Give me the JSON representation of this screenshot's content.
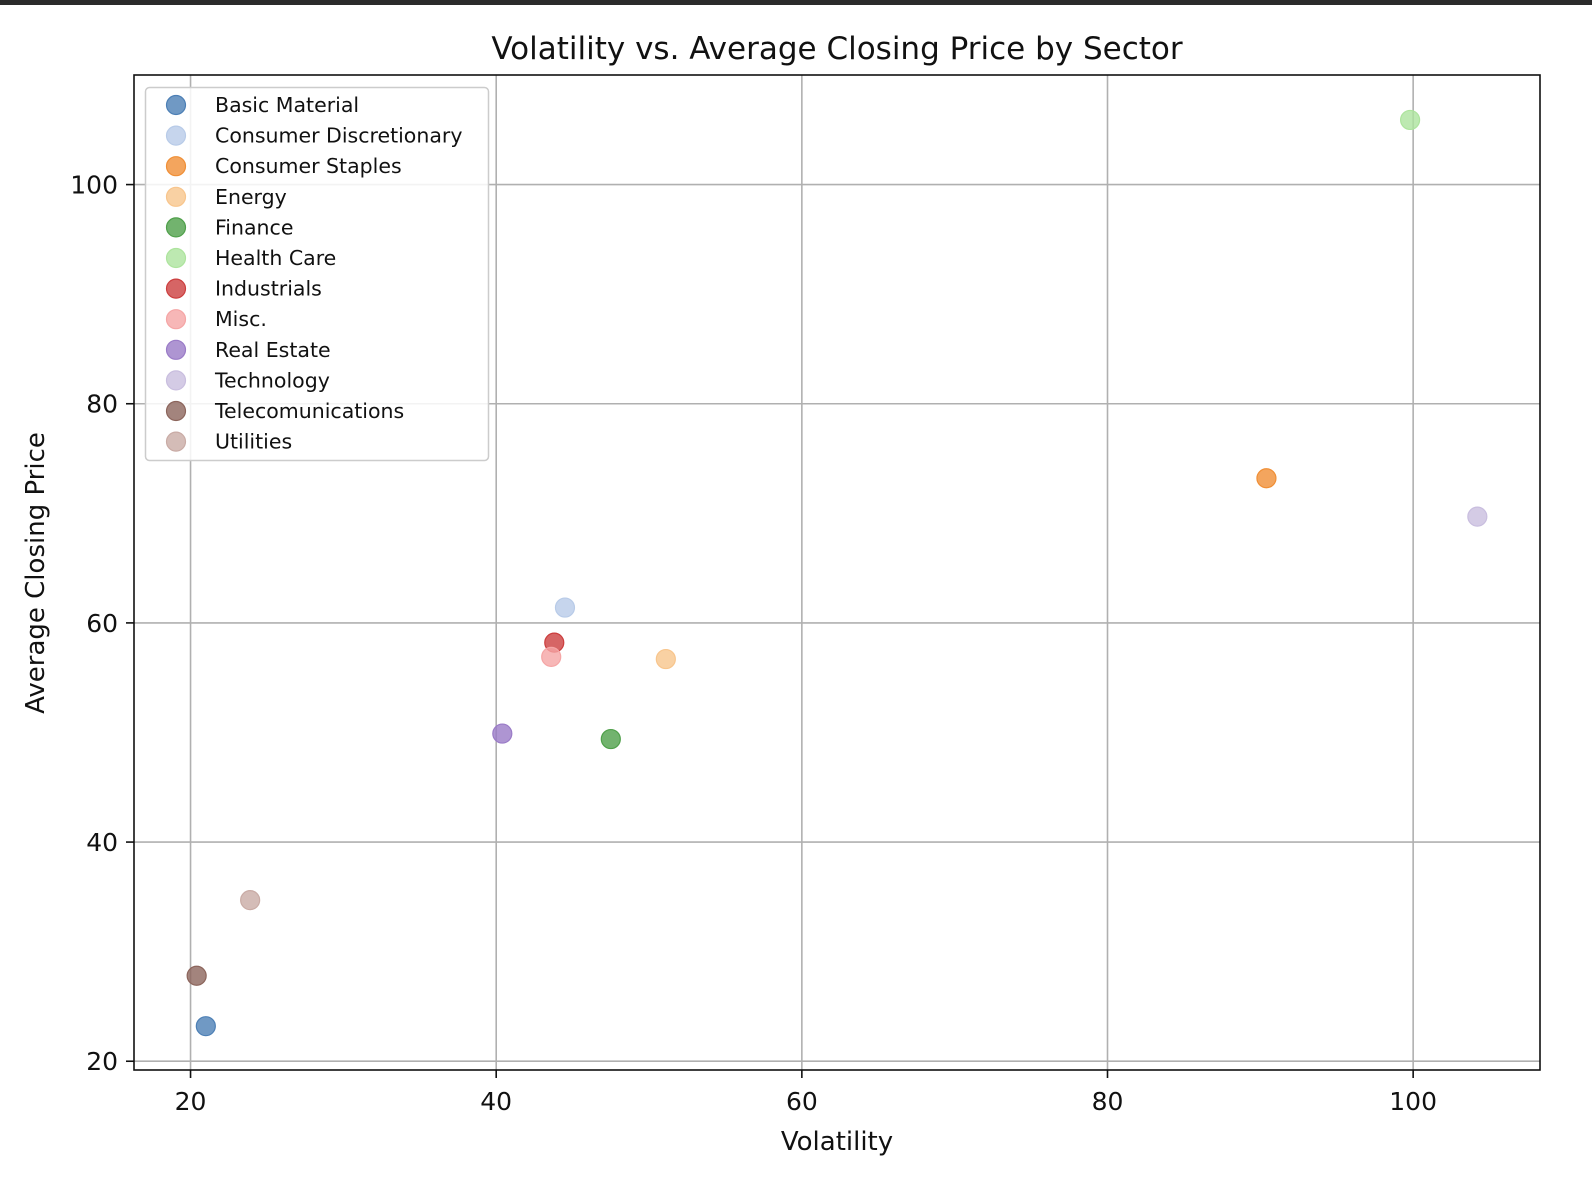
{
  "chart_data": {
    "type": "scatter",
    "title": "Volatility vs. Average Closing Price by Sector",
    "xlabel": "Volatility",
    "ylabel": "Average Closing Price",
    "xlim": [
      16.3,
      108.3
    ],
    "ylim": [
      19.2,
      110.0
    ],
    "xticks": [
      20,
      40,
      60,
      80,
      100
    ],
    "yticks": [
      20,
      40,
      60,
      80,
      100
    ],
    "grid": true,
    "legend_position": "upper left",
    "series": [
      {
        "name": "Basic Material",
        "color": "#4c7fb5",
        "x": [
          21.0
        ],
        "y": [
          23.2
        ]
      },
      {
        "name": "Consumer Discretionary",
        "color": "#b8cbe8",
        "x": [
          44.5
        ],
        "y": [
          61.4
        ]
      },
      {
        "name": "Consumer Staples",
        "color": "#f08f36",
        "x": [
          90.4
        ],
        "y": [
          73.2
        ]
      },
      {
        "name": "Energy",
        "color": "#f8c58c",
        "x": [
          51.1
        ],
        "y": [
          56.7
        ]
      },
      {
        "name": "Finance",
        "color": "#4fa04a",
        "x": [
          47.5
        ],
        "y": [
          49.4
        ]
      },
      {
        "name": "Health Care",
        "color": "#ade49d",
        "x": [
          99.8
        ],
        "y": [
          105.9
        ]
      },
      {
        "name": "Industrials",
        "color": "#cc3e3e",
        "x": [
          43.8
        ],
        "y": [
          58.2
        ]
      },
      {
        "name": "Misc.",
        "color": "#f5a5a5",
        "x": [
          43.6
        ],
        "y": [
          56.9
        ]
      },
      {
        "name": "Real Estate",
        "color": "#9a7bc7",
        "x": [
          40.4
        ],
        "y": [
          49.9
        ]
      },
      {
        "name": "Technology",
        "color": "#c9bedf",
        "x": [
          104.2
        ],
        "y": [
          69.7
        ]
      },
      {
        "name": "Telecomunications",
        "color": "#8c655c",
        "x": [
          20.4
        ],
        "y": [
          27.8
        ]
      },
      {
        "name": "Utilities",
        "color": "#c9aba5",
        "x": [
          23.9
        ],
        "y": [
          34.7
        ]
      }
    ]
  }
}
